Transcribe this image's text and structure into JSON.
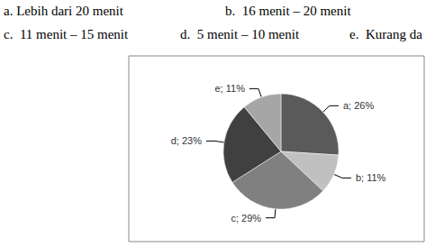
{
  "chart_data": {
    "type": "pie",
    "annotations": [
      "a. Lebih dari 20 menit",
      "b.  16 menit – 20 menit",
      "c.  11 menit – 15 menit",
      "d.  5 menit – 10 menit",
      "e.  Kurang da"
    ],
    "categories": [
      "a",
      "b",
      "c",
      "d",
      "e"
    ],
    "values": [
      26,
      11,
      29,
      23,
      11
    ],
    "value_labels": [
      "a; 26%",
      "b; 11%",
      "c; 29%",
      "d; 23%",
      "e; 11%"
    ],
    "colors": [
      "#5a5a5a",
      "#c0c0c0",
      "#808080",
      "#404040",
      "#a6a6a6"
    ],
    "data_labels": true,
    "legend": false
  }
}
